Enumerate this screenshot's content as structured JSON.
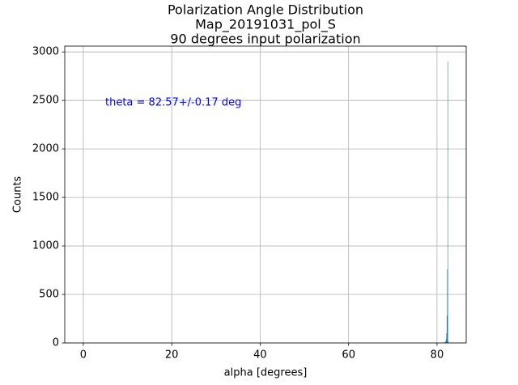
{
  "chart_data": {
    "type": "histogram",
    "title": [
      "Polarization Angle Distribution",
      "Map_20191031_pol_S",
      "90 degrees input polarization"
    ],
    "xlabel": "alpha [degrees]",
    "ylabel": "Counts",
    "annotation": "theta = 82.57+/-0.17 deg",
    "annotation_color": "#0000ff",
    "bins": [
      81.6,
      81.7,
      81.8,
      81.9,
      82.0,
      82.1,
      82.2,
      82.3,
      82.4,
      82.5,
      82.6
    ],
    "values": [
      3,
      6,
      10,
      20,
      40,
      100,
      280,
      760,
      2900,
      15
    ],
    "color": "#1f77b4",
    "xlim": [
      -4.2,
      86.6
    ],
    "ylim": [
      0,
      3060
    ],
    "xticks": [
      0,
      20,
      40,
      60,
      80
    ],
    "yticks": [
      0,
      500,
      1000,
      1500,
      2000,
      2500,
      3000
    ],
    "grid": true
  }
}
